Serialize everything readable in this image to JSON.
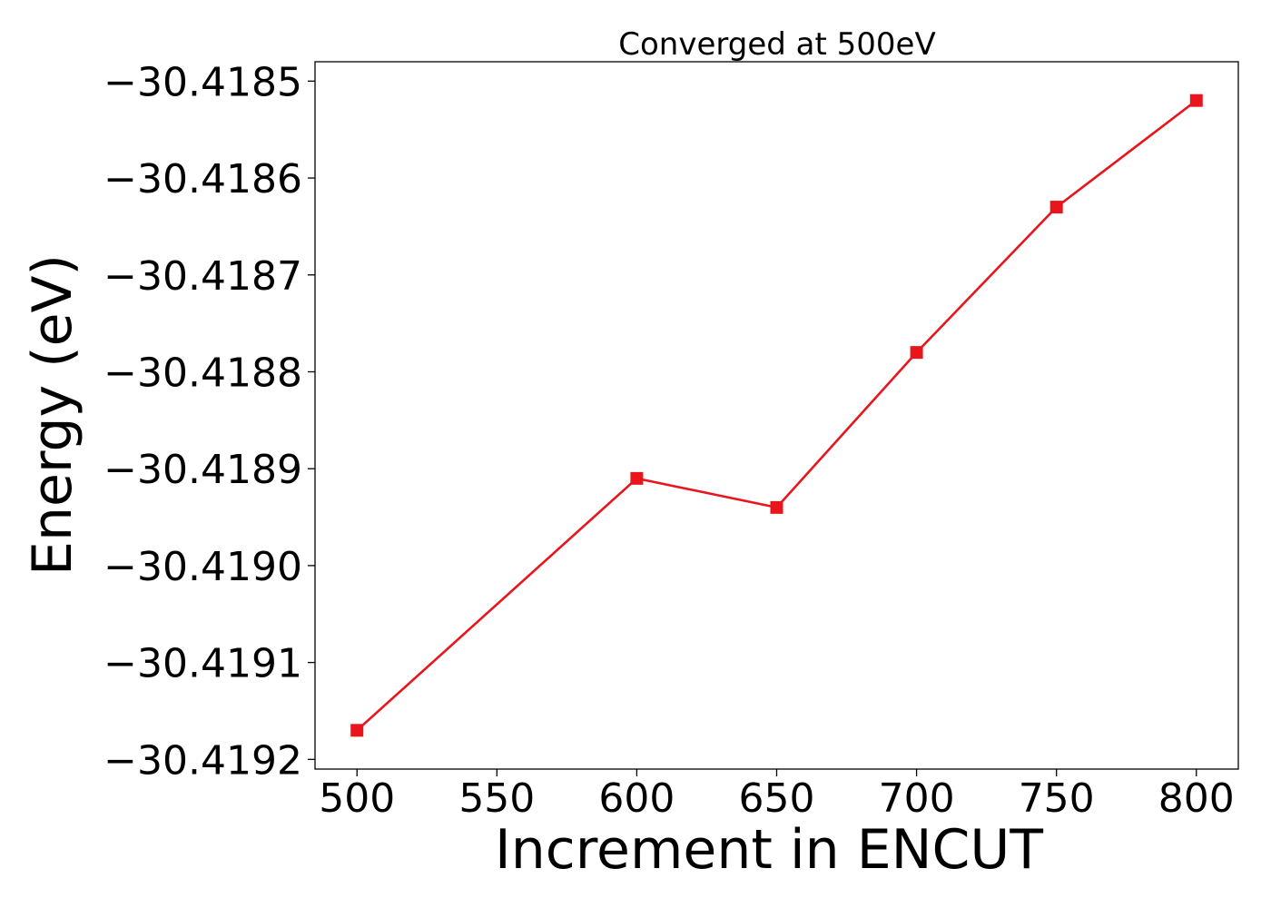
{
  "chart_data": {
    "type": "line",
    "title": "Converged at 500eV",
    "xlabel": "Increment in ENCUT",
    "ylabel": "Energy (eV)",
    "xlim": [
      485,
      815
    ],
    "ylim": [
      -30.41921,
      -30.41848
    ],
    "xticks": [
      500,
      550,
      600,
      650,
      700,
      750,
      800
    ],
    "yticks": [
      -30.4185,
      -30.4186,
      -30.4187,
      -30.4188,
      -30.4189,
      -30.419,
      -30.4191,
      -30.4192
    ],
    "ytick_labels": [
      "−30.4185",
      "−30.4186",
      "−30.4187",
      "−30.4188",
      "−30.4189",
      "−30.4190",
      "−30.4191",
      "−30.4192"
    ],
    "grid": false,
    "series": [
      {
        "color": "#e8161c",
        "marker": "square",
        "x": [
          500,
          600,
          650,
          700,
          750,
          800
        ],
        "y": [
          -30.41917,
          -30.41891,
          -30.41894,
          -30.41878,
          -30.41863,
          -30.41852
        ]
      }
    ]
  }
}
